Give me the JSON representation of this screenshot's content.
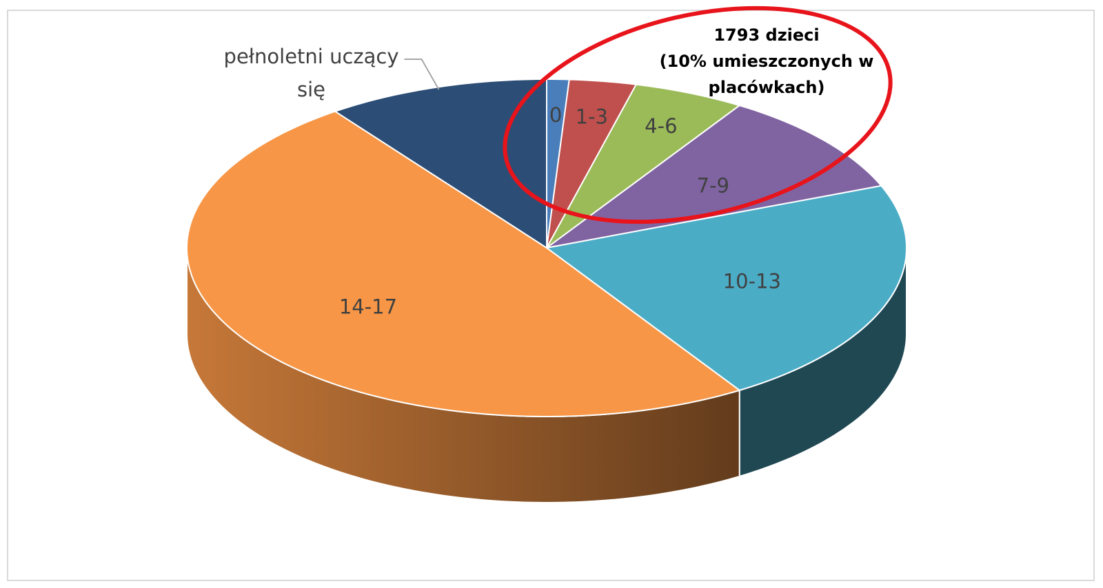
{
  "chart_data": {
    "type": "pie3d",
    "categories": [
      "0",
      "1-3",
      "4-6",
      "7-9",
      "10-13",
      "14-17",
      "pełnoletni uczący się"
    ],
    "values": [
      1,
      3,
      5,
      10,
      22,
      49,
      10
    ],
    "colors": [
      "#4a7ebb",
      "#c0504d",
      "#9bbb59",
      "#8064a2",
      "#4bacc6",
      "#f79646",
      "#2c4d75"
    ],
    "annotation": [
      "1793 dzieci",
      "(10% umieszczonych w",
      "placówkach)"
    ],
    "annotation_color": "#e8141b"
  }
}
